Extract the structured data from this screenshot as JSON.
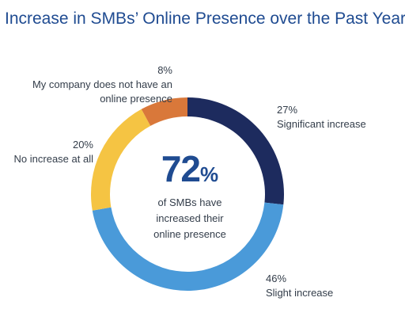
{
  "chart_data": {
    "type": "pie",
    "title": "Increase in SMBs’ Online Presence over the Past Year",
    "slices": [
      {
        "label": "Significant increase",
        "value": 27,
        "pct_label": "27%",
        "color": "#1d2b5e"
      },
      {
        "label": "Slight increase",
        "value": 46,
        "pct_label": "46%",
        "color": "#4a9ad9"
      },
      {
        "label": "No increase at all",
        "value": 20,
        "pct_label": "20%",
        "color": "#f5c443"
      },
      {
        "label_lines": [
          "My company does not have an",
          "online presence"
        ],
        "value": 8,
        "pct_label": "8%",
        "color": "#d9783a"
      }
    ],
    "center": {
      "value": "72",
      "unit": "%",
      "caption_lines": [
        "of SMBs have",
        "increased their",
        "online presence"
      ]
    }
  }
}
